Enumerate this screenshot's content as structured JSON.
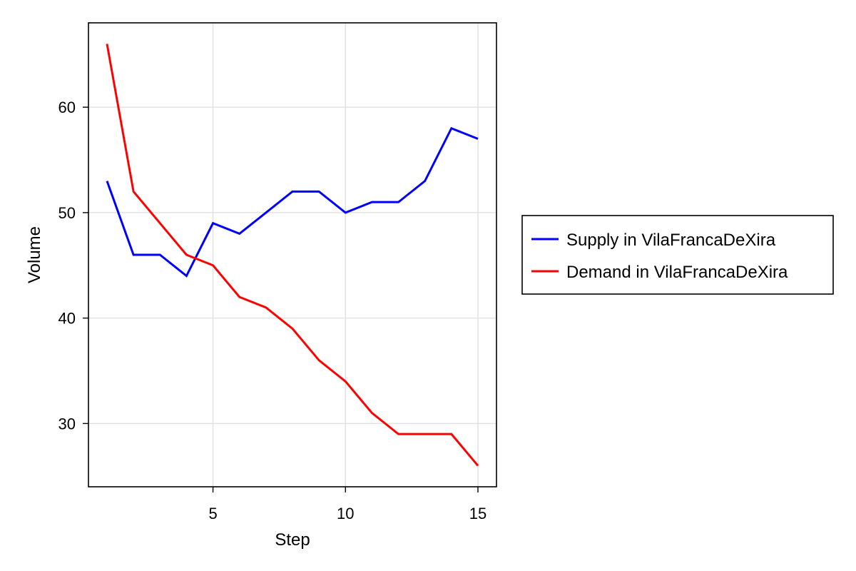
{
  "chart_data": {
    "type": "line",
    "xlabel": "Step",
    "ylabel": "Volume",
    "xlim": [
      0.3,
      15.7
    ],
    "ylim": [
      24,
      68
    ],
    "x_ticks": [
      5,
      10,
      15
    ],
    "y_ticks": [
      30,
      40,
      50,
      60
    ],
    "x_tick_labels": [
      "5",
      "10",
      "15"
    ],
    "y_tick_labels": [
      "30",
      "40",
      "50",
      "60"
    ],
    "grid": true,
    "legend_position": "right",
    "x": [
      1,
      2,
      3,
      4,
      5,
      6,
      7,
      8,
      9,
      10,
      11,
      12,
      13,
      14,
      15
    ],
    "series": [
      {
        "name": "Supply in VilaFrancaDeXira",
        "color": "#0000ff",
        "values": [
          53,
          46,
          46,
          44,
          49,
          48,
          50,
          52,
          52,
          50,
          51,
          51,
          53,
          58,
          57
        ]
      },
      {
        "name": "Demand in VilaFrancaDeXira",
        "color": "#ff0000",
        "values": [
          66,
          52,
          49,
          46,
          45,
          42,
          41,
          39,
          36,
          34,
          31,
          29,
          29,
          29,
          26
        ]
      }
    ]
  }
}
